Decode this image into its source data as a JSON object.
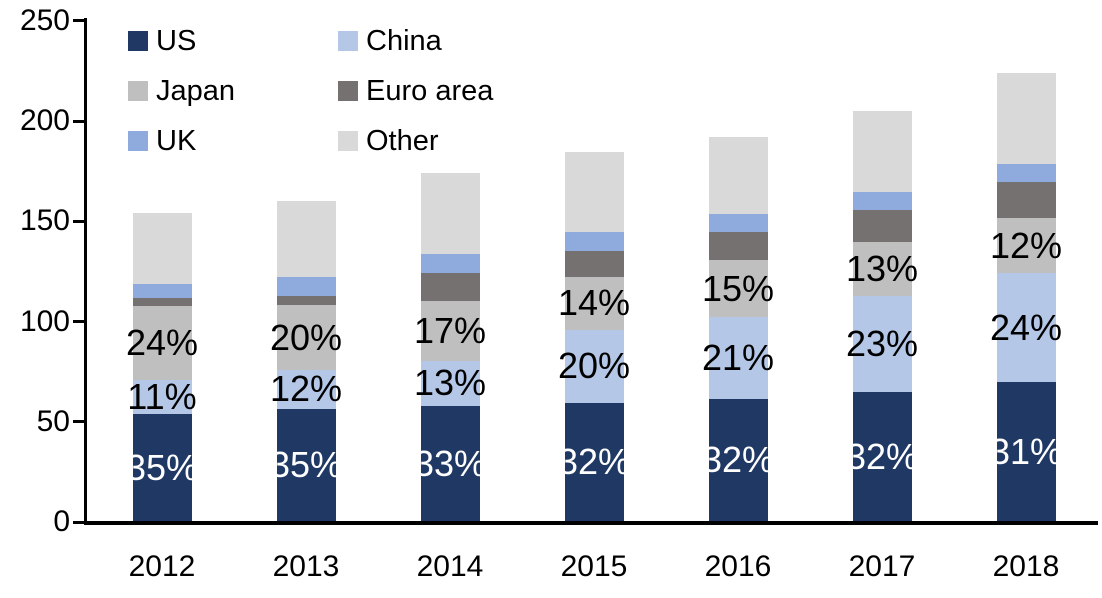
{
  "chart_data": {
    "type": "bar",
    "stacked": true,
    "title": "",
    "xlabel": "",
    "ylabel": "",
    "ylim": [
      0,
      250
    ],
    "yticks": [
      0,
      50,
      100,
      150,
      200,
      250
    ],
    "grid": false,
    "legend_position": "top-left",
    "categories": [
      "2012",
      "2013",
      "2014",
      "2015",
      "2016",
      "2017",
      "2018"
    ],
    "totals": [
      154,
      160,
      174,
      184.5,
      192,
      205,
      224
    ],
    "series": [
      {
        "name": "US",
        "color": "#1f3864",
        "label_color": "#ffffff",
        "values": [
          54,
          56.5,
          58,
          59.5,
          61.5,
          65,
          70
        ],
        "pct_labels": [
          "35%",
          "35%",
          "33%",
          "32%",
          "32%",
          "32%",
          "31%"
        ]
      },
      {
        "name": "China",
        "color": "#b4c7e7",
        "label_color": "#000000",
        "values": [
          17,
          19.5,
          22.5,
          36.5,
          40.5,
          47.5,
          54
        ],
        "pct_labels": [
          "11%",
          "12%",
          "13%",
          "20%",
          "21%",
          "23%",
          "24%"
        ]
      },
      {
        "name": "Japan",
        "color": "#bfbfbf",
        "label_color": "#000000",
        "values": [
          36.5,
          32,
          29.5,
          26,
          28.5,
          27,
          27.5
        ],
        "pct_labels": [
          "24%",
          "20%",
          "17%",
          "14%",
          "15%",
          "13%",
          "12%"
        ]
      },
      {
        "name": "Euro area",
        "color": "#767171",
        "label_color": "#000000",
        "values": [
          4,
          4.5,
          14,
          13,
          14,
          16,
          18
        ],
        "pct_labels": [
          "",
          "",
          "",
          "",
          "",
          "",
          ""
        ]
      },
      {
        "name": "UK",
        "color": "#8faadc",
        "label_color": "#000000",
        "values": [
          7,
          9.5,
          9.5,
          9.5,
          9,
          9,
          9
        ],
        "pct_labels": [
          "",
          "",
          "",
          "",
          "",
          "",
          ""
        ]
      },
      {
        "name": "Other",
        "color": "#d9d9d9",
        "label_color": "#000000",
        "values": [
          35.5,
          38,
          40.5,
          40,
          38.5,
          40.5,
          45.5
        ],
        "pct_labels": [
          "",
          "",
          "",
          "",
          "",
          "",
          ""
        ]
      }
    ],
    "legend_entries": [
      "US",
      "China",
      "Japan",
      "Euro area",
      "UK",
      "Other"
    ]
  },
  "layout_note": ""
}
